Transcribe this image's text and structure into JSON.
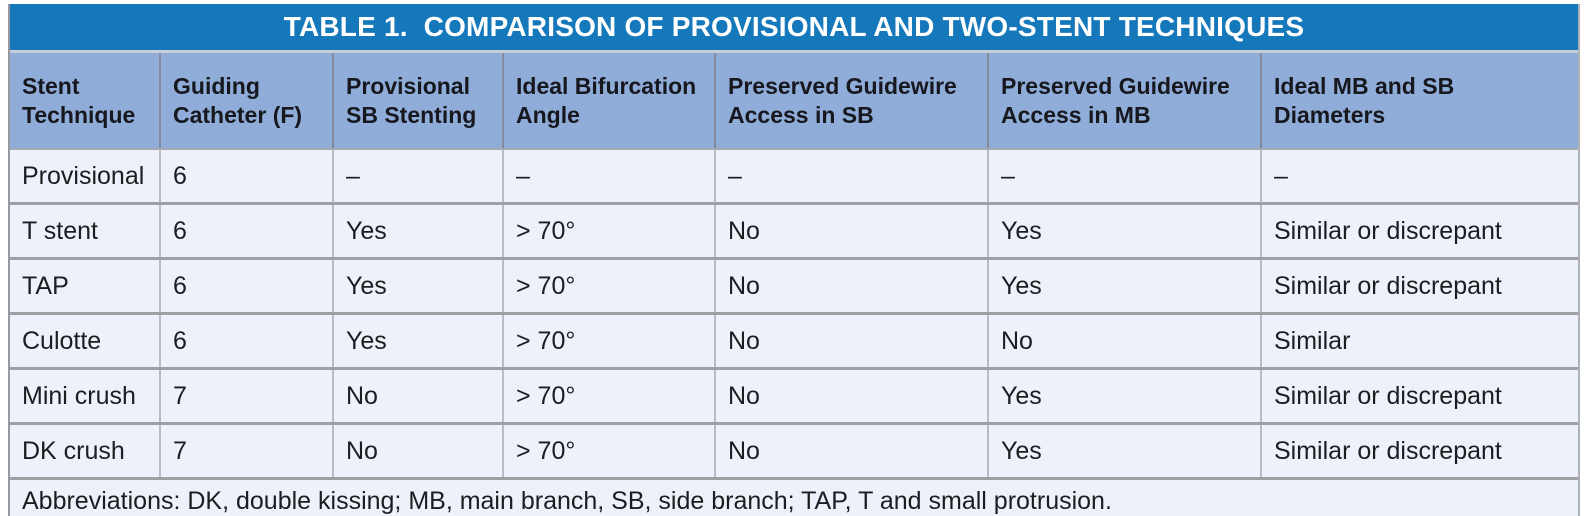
{
  "colors": {
    "title_bar_blue": "#1478bb",
    "header_blue": "#8fadd8",
    "row_background": "#edf1f9",
    "grid_border_gray": "#9e9fa3",
    "title_text": "#ffffff",
    "body_text": "#1d1d20"
  },
  "table": {
    "title": "TABLE 1.  COMPARISON OF PROVISIONAL AND TWO-STENT TECHNIQUES",
    "columns": [
      "Stent\nTechnique",
      "Guiding\nCatheter (F)",
      "Provisional\nSB Stenting",
      "Ideal Bifurcation\nAngle",
      "Preserved Guidewire\nAccess in SB",
      "Preserved Guidewire\nAccess in MB",
      "Ideal MB and SB\nDiameters"
    ],
    "rows": [
      {
        "cells": [
          "Provisional",
          "6",
          "–",
          "–",
          "–",
          "–",
          "–"
        ]
      },
      {
        "cells": [
          "T stent",
          "6",
          "Yes",
          "> 70°",
          "No",
          "Yes",
          "Similar or discrepant"
        ]
      },
      {
        "cells": [
          "TAP",
          "6",
          "Yes",
          "> 70°",
          "No",
          "Yes",
          "Similar or discrepant"
        ]
      },
      {
        "cells": [
          "Culotte",
          "6",
          "Yes",
          "> 70°",
          "No",
          "No",
          "Similar"
        ]
      },
      {
        "cells": [
          "Mini crush",
          "7",
          "No",
          "> 70°",
          "No",
          "Yes",
          "Similar or discrepant"
        ]
      },
      {
        "cells": [
          "DK crush",
          "7",
          "No",
          "> 70°",
          "No",
          "Yes",
          "Similar or discrepant"
        ]
      }
    ],
    "footnote": "Abbreviations: DK, double kissing; MB, main branch, SB, side branch; TAP, T and small protrusion."
  }
}
